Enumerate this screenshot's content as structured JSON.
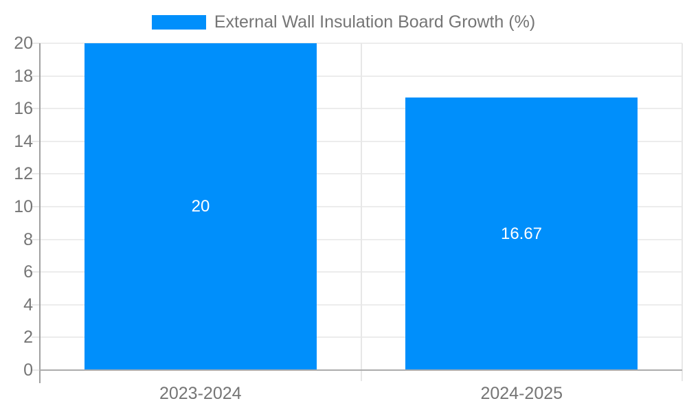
{
  "chart_data": {
    "type": "bar",
    "title": "External Wall Insulation Board Growth (%)",
    "legend_label": "External Wall Insulation Board Growth (%)",
    "categories": [
      "2023-2024",
      "2024-2025"
    ],
    "series": [
      {
        "name": "External Wall Insulation Board Growth (%)",
        "values": [
          20,
          16.67
        ],
        "value_labels": [
          "20",
          "16.67"
        ]
      }
    ],
    "xlabel": "",
    "ylabel": "",
    "ylim": [
      0,
      20
    ],
    "yticks": [
      0,
      2,
      4,
      6,
      8,
      10,
      12,
      14,
      16,
      18,
      20
    ],
    "grid": true,
    "legend_position": "top",
    "colors": {
      "bar": "#008FFB",
      "bar_value_label": "#FFFFFF",
      "axis_label": "#757575",
      "legend_text": "#757575",
      "gridline": "#ECECEC",
      "separator_line": "#E7E7E7",
      "x_axis_line": "#ABABAB",
      "y_axis_line": "#A0A0A0",
      "background": "#FFFFFF"
    }
  }
}
